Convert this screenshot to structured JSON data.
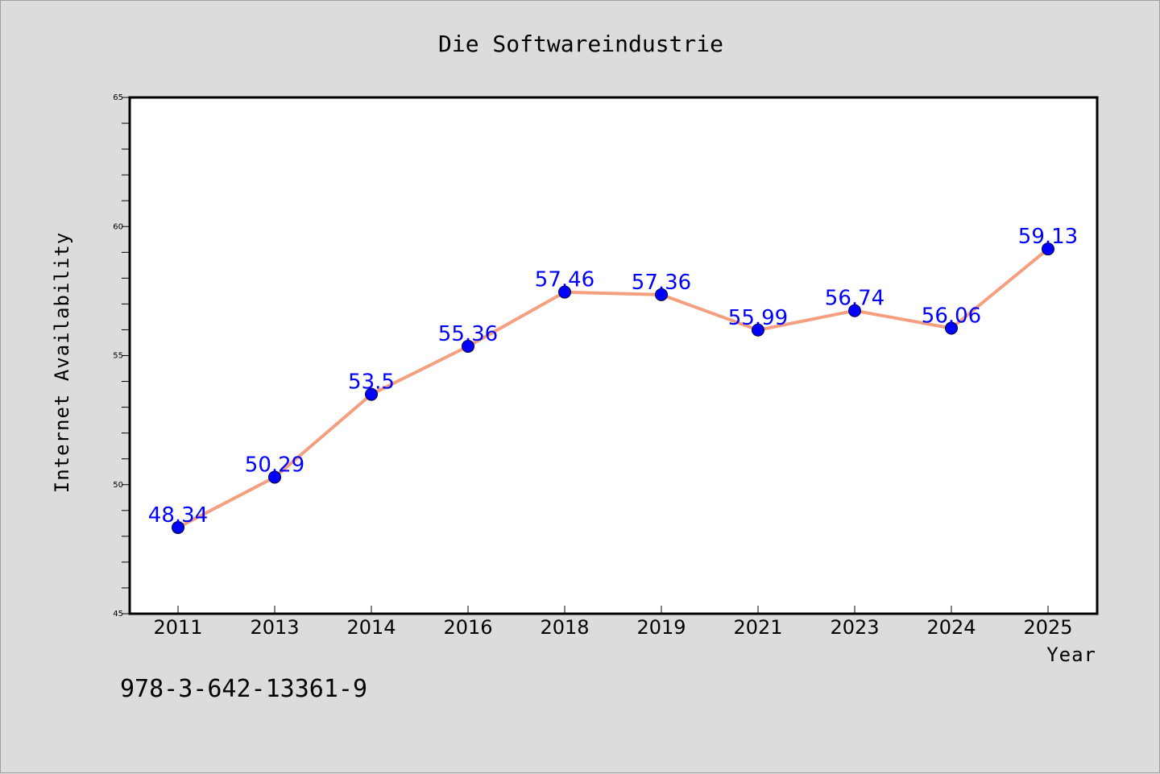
{
  "chart_data": {
    "type": "line",
    "title": "Die Softwareindustrie",
    "xlabel": "Year",
    "ylabel": "Internet Availability",
    "categories": [
      "2011",
      "2013",
      "2014",
      "2016",
      "2018",
      "2019",
      "2021",
      "2023",
      "2024",
      "2025"
    ],
    "series": [
      {
        "values": [
          48.34,
          50.29,
          53.5,
          55.36,
          57.46,
          57.36,
          55.99,
          56.74,
          56.06,
          59.13
        ],
        "data_labels": [
          "48.34",
          "50.29",
          "53.5",
          "55.36",
          "57.46",
          "57.36",
          "55.99",
          "56.74",
          "56.06",
          "59.13"
        ],
        "line_color": "#f4a080",
        "marker_color": "#0000ff",
        "label_color": "#0000ff"
      }
    ],
    "y_ticks": [
      "45",
      "50",
      "55",
      "60",
      "65"
    ],
    "ylim": [
      45,
      65
    ],
    "grid": false,
    "legend": "none"
  },
  "footer": {
    "text": "978-3-642-13361-9"
  },
  "colors": {
    "figure_background": "#dcdcdc",
    "plot_background": "#ffffff",
    "axes_frame": "#000000"
  }
}
